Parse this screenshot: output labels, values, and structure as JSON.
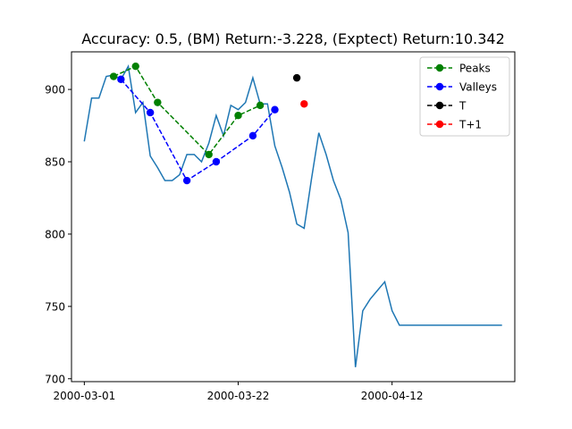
{
  "chart_data": {
    "type": "line",
    "title": "Accuracy: 0.5, (BM) Return:-3.228, (Exptect) Return:10.342",
    "xlabel": "",
    "ylabel": "",
    "x_ticks": [
      {
        "day": 0,
        "label": "2000-03-01"
      },
      {
        "day": 21,
        "label": "2000-03-22"
      },
      {
        "day": 42,
        "label": "2000-04-12"
      }
    ],
    "y_ticks": [
      700,
      750,
      800,
      850,
      900
    ],
    "xlim": [
      -1.75,
      58.75
    ],
    "ylim": [
      698,
      926
    ],
    "grid": false,
    "legend": "upper right",
    "colors": {
      "price": "#1f77b4",
      "peaks": "#008000",
      "valleys": "#0000ff",
      "t": "#000000",
      "t1": "#ff0000"
    },
    "price_series": {
      "name": "",
      "days": [
        0,
        1,
        2,
        3,
        4,
        5,
        6,
        7,
        8,
        9,
        10,
        11,
        12,
        13,
        14,
        15,
        16,
        17,
        18,
        19,
        20,
        21,
        22,
        23,
        24,
        25,
        26,
        27,
        28,
        29,
        30,
        31,
        32,
        33,
        34,
        35,
        36,
        37,
        38,
        39,
        40,
        41,
        42,
        43,
        44,
        45,
        46,
        47,
        48,
        49,
        50,
        51,
        52,
        53,
        54,
        55,
        56,
        57
      ],
      "values": [
        864,
        894,
        894,
        909,
        910,
        907,
        916,
        884,
        891,
        854,
        846,
        837,
        837,
        841,
        855,
        855,
        850,
        863,
        882,
        868,
        889,
        886,
        891,
        908,
        890,
        890,
        861,
        846,
        829,
        807,
        804,
        838,
        870,
        855,
        837,
        824,
        801,
        708,
        747,
        755,
        761,
        767,
        747,
        737,
        737,
        737,
        737,
        737,
        737,
        737,
        737,
        737,
        737,
        737,
        737,
        737,
        737,
        737
      ]
    },
    "series": [
      {
        "name": "Peaks",
        "style": "dashed-marker",
        "days": [
          4,
          7,
          10,
          17,
          21,
          24
        ],
        "values": [
          909,
          916,
          891,
          855,
          882,
          889
        ]
      },
      {
        "name": "Valleys",
        "style": "dashed-marker",
        "days": [
          5,
          9,
          14,
          18,
          23,
          26
        ],
        "values": [
          907,
          884,
          837,
          850,
          868,
          886
        ]
      },
      {
        "name": "T",
        "style": "marker",
        "days": [
          29
        ],
        "values": [
          908
        ]
      },
      {
        "name": "T+1",
        "style": "marker",
        "days": [
          30
        ],
        "values": [
          890
        ]
      }
    ]
  }
}
